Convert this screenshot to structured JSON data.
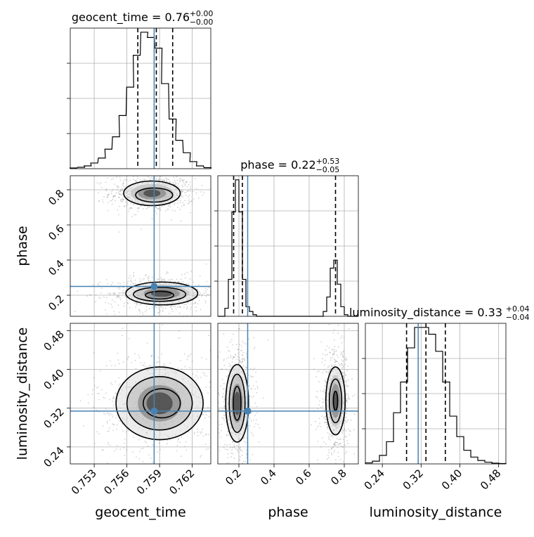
{
  "chart_data": {
    "type": "corner",
    "parameters": [
      "geocent_time",
      "phase",
      "luminosity_distance"
    ],
    "titles": [
      {
        "name": "geocent_time",
        "median": "0.76",
        "plus": "+0.00",
        "minus": "−0.00"
      },
      {
        "name": "phase",
        "median": "0.22",
        "plus": "+0.53",
        "minus": "−0.05"
      },
      {
        "name": "luminosity_distance",
        "median": "0.33",
        "plus": "+0.04",
        "minus": "−0.04"
      }
    ],
    "axis_labels": {
      "x": [
        "geocent_time",
        "phase",
        "luminosity_distance"
      ],
      "y": [
        "phase",
        "luminosity_distance"
      ]
    },
    "axes": {
      "geocent_time": {
        "range": [
          0.7508,
          0.7637
        ],
        "ticks": [
          0.753,
          0.756,
          0.759,
          0.762
        ],
        "tick_labels": [
          "0.753",
          "0.756",
          "0.759",
          "0.762"
        ]
      },
      "phase": {
        "range": [
          0.08,
          0.88
        ],
        "ticks": [
          0.2,
          0.4,
          0.6,
          0.8
        ],
        "tick_labels": [
          "0.2",
          "0.4",
          "0.6",
          "0.8"
        ]
      },
      "luminosity_distance": {
        "range": [
          0.205,
          0.495
        ],
        "ticks": [
          0.24,
          0.32,
          0.4,
          0.48
        ],
        "tick_labels": [
          "0.24",
          "0.32",
          "0.40",
          "0.48"
        ]
      }
    },
    "truths": {
      "geocent_time": 0.7585,
      "phase": 0.25,
      "luminosity_distance": 0.314
    },
    "quantiles": {
      "geocent_time": [
        0.757,
        0.7587,
        0.7602
      ],
      "phase": [
        0.17,
        0.22,
        0.75
      ],
      "luminosity_distance": [
        0.29,
        0.33,
        0.37
      ]
    },
    "histograms": {
      "geocent_time": {
        "bin_width": 0.000645,
        "centers": [
          0.7511,
          0.7518,
          0.7524,
          0.753,
          0.7537,
          0.7543,
          0.755,
          0.7556,
          0.7563,
          0.7569,
          0.7576,
          0.7582,
          0.7589,
          0.7595,
          0.7602,
          0.7608,
          0.7615,
          0.7621,
          0.7627,
          0.7634
        ],
        "counts": [
          0.2,
          0.4,
          0.8,
          1.6,
          3.0,
          5.5,
          9.0,
          15.0,
          23.0,
          32.0,
          38.5,
          37.0,
          34.0,
          24.0,
          14.0,
          8.0,
          4.5,
          2.0,
          0.8,
          0.3
        ]
      },
      "phase": {
        "bin_width": 0.02,
        "centers": [
          0.09,
          0.11,
          0.13,
          0.15,
          0.17,
          0.19,
          0.21,
          0.23,
          0.25,
          0.27,
          0.29,
          0.31,
          0.33,
          0.35,
          0.37,
          0.39,
          0.41,
          0.43,
          0.45,
          0.47,
          0.49,
          0.51,
          0.53,
          0.55,
          0.57,
          0.59,
          0.61,
          0.63,
          0.65,
          0.67,
          0.69,
          0.71,
          0.73,
          0.75,
          0.77,
          0.79,
          0.81,
          0.83,
          0.85,
          0.87
        ],
        "counts": [
          0,
          0,
          0.5,
          2.3,
          6.5,
          8.5,
          6.5,
          2.3,
          0.6,
          0.3,
          0.1,
          0,
          0,
          0,
          0,
          0,
          0,
          0,
          0,
          0,
          0,
          0,
          0,
          0,
          0,
          0,
          0,
          0,
          0,
          0,
          0.3,
          1.2,
          3.0,
          3.5,
          2.0,
          0.6,
          0.1,
          0,
          0,
          0
        ]
      },
      "luminosity_distance": {
        "bin_width": 0.0145,
        "centers": [
          0.2123,
          0.2268,
          0.2413,
          0.2558,
          0.2703,
          0.2848,
          0.2993,
          0.3138,
          0.3283,
          0.3428,
          0.3573,
          0.3718,
          0.3863,
          0.4008,
          0.4153,
          0.4298,
          0.4443,
          0.4588,
          0.4733,
          0.4878
        ],
        "counts": [
          0.3,
          0.8,
          2.5,
          6.5,
          15,
          24,
          34,
          40,
          40,
          38,
          33,
          24,
          14,
          8,
          4,
          2,
          1,
          0.5,
          0.2,
          0.1
        ]
      }
    },
    "contours": {
      "phase_vs_geocent_time": [
        {
          "cx": 0.7583,
          "cy": 0.78,
          "rx": 0.0026,
          "ry": 0.07
        },
        {
          "cx": 0.7585,
          "cy": 0.77,
          "rx": 0.0017,
          "ry": 0.04
        },
        {
          "cx": 0.7592,
          "cy": 0.21,
          "rx": 0.0033,
          "ry": 0.065
        },
        {
          "cx": 0.759,
          "cy": 0.205,
          "rx": 0.0024,
          "ry": 0.04
        },
        {
          "cx": 0.759,
          "cy": 0.2,
          "rx": 0.0013,
          "ry": 0.022
        }
      ],
      "luminosity_distance_vs_geocent_time": [
        {
          "cx": 0.759,
          "cy": 0.33,
          "rx": 0.004,
          "ry": 0.075
        },
        {
          "cx": 0.759,
          "cy": 0.33,
          "rx": 0.003,
          "ry": 0.055
        },
        {
          "cx": 0.7592,
          "cy": 0.33,
          "rx": 0.0017,
          "ry": 0.03
        }
      ],
      "luminosity_distance_vs_phase": [
        {
          "cx": 0.19,
          "cy": 0.33,
          "rx": 0.065,
          "ry": 0.08
        },
        {
          "cx": 0.19,
          "cy": 0.33,
          "rx": 0.045,
          "ry": 0.06
        },
        {
          "cx": 0.19,
          "cy": 0.33,
          "rx": 0.022,
          "ry": 0.035
        },
        {
          "cx": 0.75,
          "cy": 0.335,
          "rx": 0.055,
          "ry": 0.07
        },
        {
          "cx": 0.75,
          "cy": 0.335,
          "rx": 0.035,
          "ry": 0.045
        },
        {
          "cx": 0.75,
          "cy": 0.335,
          "rx": 0.012,
          "ry": 0.02
        }
      ]
    },
    "grid": true,
    "colors": {
      "truth": "#4682b4",
      "histogram": "#000000",
      "points": "#7f7f7f",
      "grid": "#b0b0b0"
    }
  }
}
